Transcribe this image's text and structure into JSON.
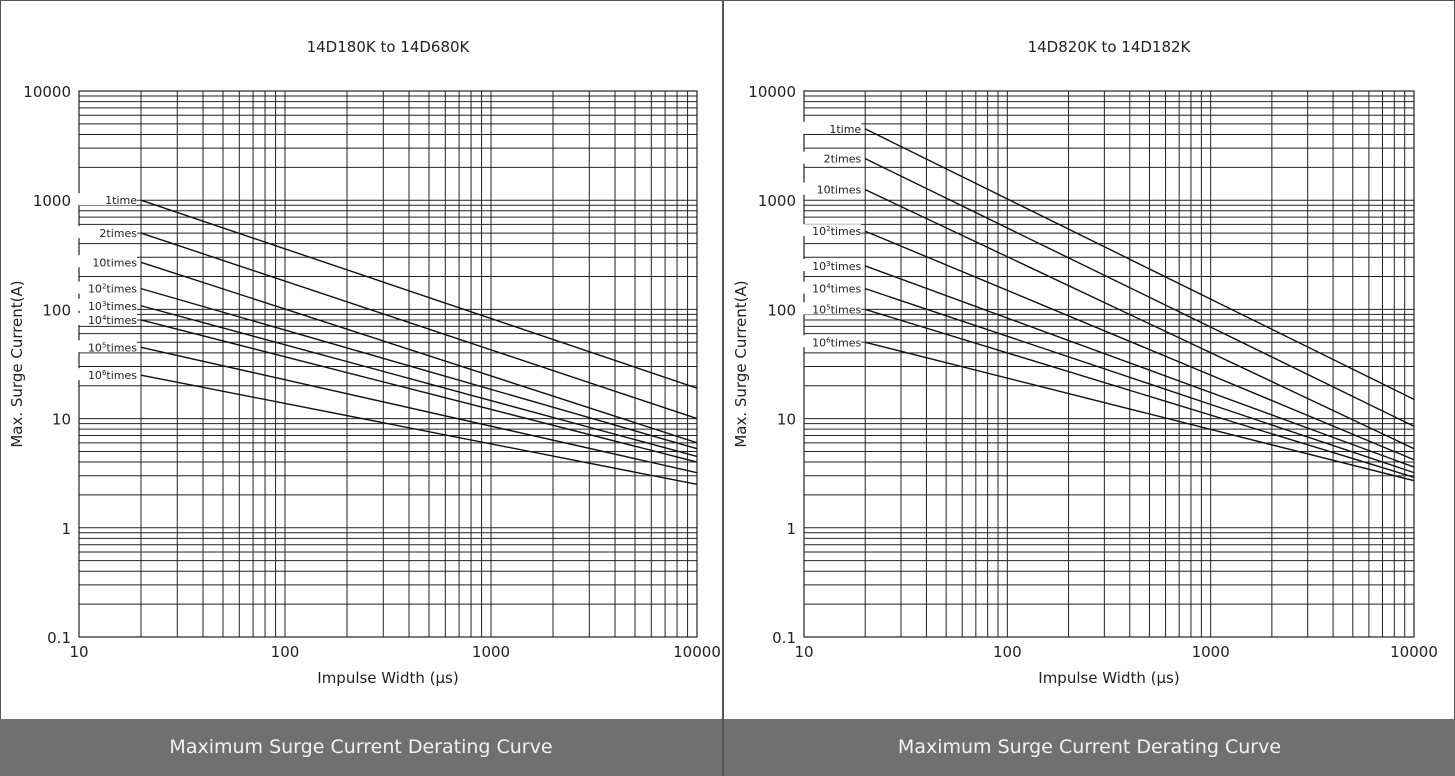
{
  "footer_caption": "Maximum Surge Current Derating Curve",
  "chart_data": [
    {
      "type": "line",
      "title": "14D180K to 14D680K",
      "xlabel": "Impulse Width (µs)",
      "ylabel": "Max. Surge Current(A)",
      "x_scale": "log",
      "y_scale": "log",
      "xlim": [
        10,
        10000
      ],
      "ylim": [
        0.1,
        10000
      ],
      "x_ticks": [
        "10",
        "100",
        "1000",
        "10000"
      ],
      "y_ticks": [
        "10000",
        "1000",
        "100",
        "10",
        "1",
        "0.1"
      ],
      "grid": true,
      "series": [
        {
          "name": "1time",
          "sup": "",
          "suffix": "time",
          "x": [
            20,
            10000
          ],
          "y": [
            1000,
            19
          ]
        },
        {
          "name": "2times",
          "sup": "",
          "suffix": "2times",
          "x": [
            20,
            10000
          ],
          "y": [
            500,
            10
          ]
        },
        {
          "name": "10times",
          "sup": "",
          "suffix": "10times",
          "x": [
            20,
            10000
          ],
          "y": [
            270,
            6
          ]
        },
        {
          "name": "10²times",
          "sup": "2",
          "suffix": "times",
          "x": [
            20,
            10000
          ],
          "y": [
            155,
            5.3
          ]
        },
        {
          "name": "10³times",
          "sup": "3",
          "suffix": "times",
          "x": [
            20,
            10000
          ],
          "y": [
            108,
            4.5
          ]
        },
        {
          "name": "10⁴times",
          "sup": "4",
          "suffix": "times",
          "x": [
            20,
            10000
          ],
          "y": [
            80,
            4
          ]
        },
        {
          "name": "10⁵times",
          "sup": "5",
          "suffix": "times",
          "x": [
            20,
            10000
          ],
          "y": [
            45,
            3.2
          ]
        },
        {
          "name": "10⁶times",
          "sup": "6",
          "suffix": "times",
          "x": [
            20,
            10000
          ],
          "y": [
            25,
            2.5
          ]
        }
      ]
    },
    {
      "type": "line",
      "title": "14D820K to 14D182K",
      "xlabel": "Impulse Width (µs)",
      "ylabel": "Max. Surge Current(A)",
      "x_scale": "log",
      "y_scale": "log",
      "xlim": [
        10,
        10000
      ],
      "ylim": [
        0.1,
        10000
      ],
      "x_ticks": [
        "10",
        "100",
        "1000",
        "10000"
      ],
      "y_ticks": [
        "10000",
        "1000",
        "100",
        "10",
        "1",
        "0.1"
      ],
      "grid": true,
      "series": [
        {
          "name": "1time",
          "sup": "",
          "suffix": "time",
          "x": [
            20,
            10000
          ],
          "y": [
            4500,
            15
          ]
        },
        {
          "name": "2times",
          "sup": "",
          "suffix": "2times",
          "x": [
            20,
            10000
          ],
          "y": [
            2400,
            8.5
          ]
        },
        {
          "name": "10times",
          "sup": "",
          "suffix": "10times",
          "x": [
            20,
            10000
          ],
          "y": [
            1250,
            5.3
          ]
        },
        {
          "name": "10²times",
          "sup": "2",
          "suffix": "times",
          "x": [
            20,
            10000
          ],
          "y": [
            520,
            4.2
          ]
        },
        {
          "name": "10³times",
          "sup": "3",
          "suffix": "times",
          "x": [
            20,
            10000
          ],
          "y": [
            250,
            3.6
          ]
        },
        {
          "name": "10⁴times",
          "sup": "4",
          "suffix": "times",
          "x": [
            20,
            10000
          ],
          "y": [
            155,
            3.2
          ]
        },
        {
          "name": "10⁵times",
          "sup": "5",
          "suffix": "times",
          "x": [
            20,
            10000
          ],
          "y": [
            100,
            2.9
          ]
        },
        {
          "name": "10⁶times",
          "sup": "6",
          "suffix": "times",
          "x": [
            20,
            10000
          ],
          "y": [
            50,
            2.7
          ]
        }
      ]
    }
  ]
}
